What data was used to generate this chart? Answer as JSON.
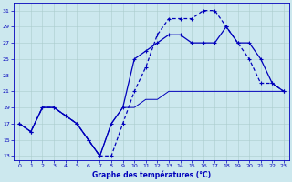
{
  "xlabel": "Graphe des températures (°C)",
  "xlim": [
    -0.5,
    23.5
  ],
  "ylim": [
    12.5,
    32
  ],
  "yticks": [
    13,
    15,
    17,
    19,
    21,
    23,
    25,
    27,
    29,
    31
  ],
  "xticks": [
    0,
    1,
    2,
    3,
    4,
    5,
    6,
    7,
    8,
    9,
    10,
    11,
    12,
    13,
    14,
    15,
    16,
    17,
    18,
    19,
    20,
    21,
    22,
    23
  ],
  "background_color": "#cce8ee",
  "grid_color": "#aacccc",
  "line_color": "#0000bb",
  "line1_x": [
    0,
    1,
    2,
    3,
    4,
    5,
    6,
    7,
    8,
    9,
    10,
    11,
    12,
    13,
    14,
    15,
    16,
    17,
    18,
    19,
    20,
    21,
    22,
    23
  ],
  "line1_y": [
    17,
    16,
    19,
    19,
    18,
    17,
    15,
    13,
    13,
    17,
    21,
    24,
    28,
    30,
    30,
    30,
    31,
    31,
    29,
    27,
    25,
    22,
    22,
    21
  ],
  "line2_x": [
    0,
    1,
    2,
    3,
    4,
    5,
    6,
    7,
    8,
    9,
    10,
    11,
    12,
    13,
    14,
    15,
    16,
    17,
    18,
    19,
    20,
    21,
    22,
    23
  ],
  "line2_y": [
    17,
    16,
    19,
    19,
    18,
    17,
    15,
    13,
    17,
    19,
    25,
    26,
    27,
    28,
    28,
    27,
    27,
    27,
    29,
    27,
    27,
    25,
    22,
    21
  ],
  "line3_x": [
    0,
    1,
    2,
    3,
    4,
    5,
    6,
    7,
    8,
    9,
    10,
    11,
    12,
    13,
    14,
    15,
    16,
    17,
    18,
    19,
    20,
    21,
    22,
    23
  ],
  "line3_y": [
    17,
    16,
    19,
    19,
    18,
    17,
    15,
    13,
    17,
    19,
    19,
    20,
    20,
    21,
    21,
    21,
    21,
    21,
    21,
    21,
    21,
    21,
    21,
    21
  ]
}
